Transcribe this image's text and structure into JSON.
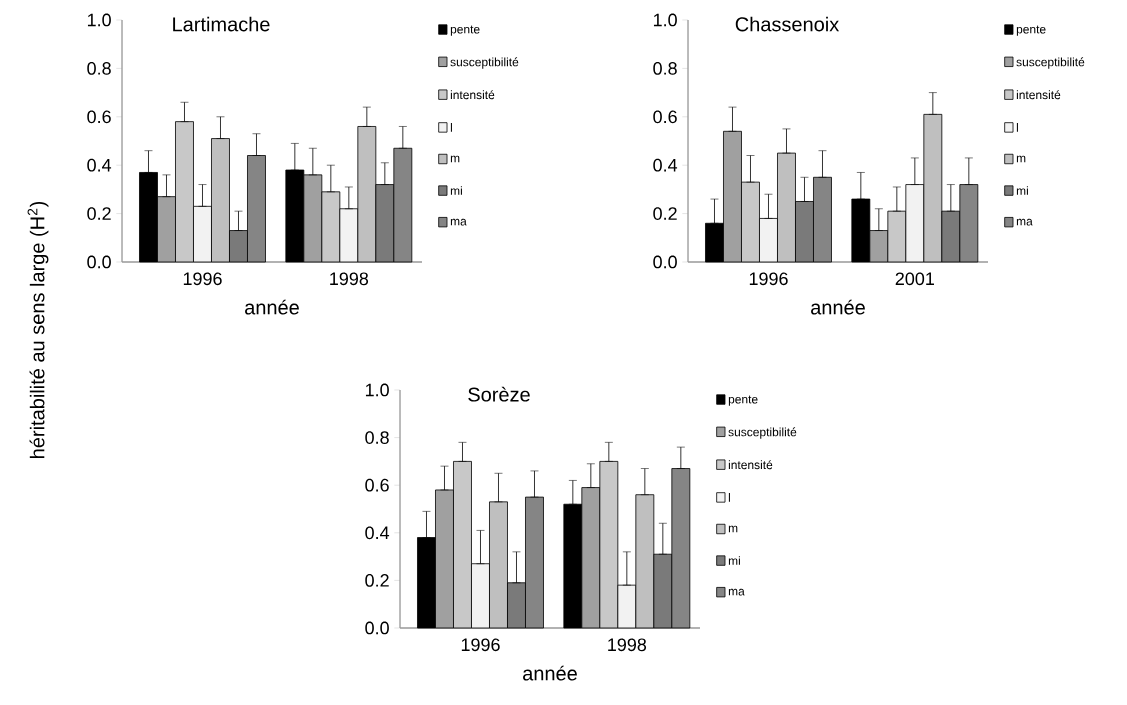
{
  "chart_data": [
    {
      "type": "bar",
      "title": "Lartimache",
      "xlabel": "année",
      "ylabel": "héritabilité au sens large (H$^{2}$)",
      "categories": [
        "1996",
        "1998"
      ],
      "ylim": [
        0,
        1.0
      ],
      "yticks": [
        {
          "value": 0,
          "label": "0.0"
        },
        {
          "value": 0.2,
          "label": "0.2"
        },
        {
          "value": 0.4,
          "label": "0.4"
        },
        {
          "value": 0.6,
          "label": "0.6"
        },
        {
          "value": 0.8,
          "label": "0.8"
        },
        {
          "value": 1.0,
          "label": "1.0"
        }
      ],
      "legend": "right",
      "grid": false,
      "series": [
        {
          "name": "pente",
          "color": "#000000",
          "values": [
            0.37,
            0.38
          ],
          "errors": [
            [
              0.37,
              0.46
            ],
            [
              0.38,
              0.49
            ]
          ]
        },
        {
          "name": "susceptibilité",
          "color": "#a0a0a0",
          "values": [
            0.27,
            0.36
          ],
          "errors": [
            [
              0.27,
              0.36
            ],
            [
              0.36,
              0.47
            ]
          ]
        },
        {
          "name": "intensité",
          "color": "#c8c8c8",
          "values": [
            0.58,
            0.29
          ],
          "errors": [
            [
              0.58,
              0.66
            ],
            [
              0.29,
              0.4
            ]
          ]
        },
        {
          "name": "l",
          "color": "#f2f2f2",
          "values": [
            0.23,
            0.22
          ],
          "errors": [
            [
              0.23,
              0.32
            ],
            [
              0.22,
              0.31
            ]
          ]
        },
        {
          "name": "m",
          "color": "#bfbfbf",
          "values": [
            0.51,
            0.56
          ],
          "errors": [
            [
              0.51,
              0.6
            ],
            [
              0.56,
              0.64
            ]
          ]
        },
        {
          "name": "mi",
          "color": "#7a7a7a",
          "values": [
            0.13,
            0.32
          ],
          "errors": [
            [
              0.13,
              0.21
            ],
            [
              0.32,
              0.41
            ]
          ]
        },
        {
          "name": "ma",
          "color": "#858585",
          "values": [
            0.44,
            0.47
          ],
          "errors": [
            [
              0.44,
              0.53
            ],
            [
              0.47,
              0.56
            ]
          ]
        }
      ]
    },
    {
      "type": "bar",
      "title": "Chassenoix",
      "xlabel": "année",
      "categories": [
        "1996",
        "2001"
      ],
      "ylim": [
        0,
        1.0
      ],
      "yticks": [
        {
          "value": 0,
          "label": "0.0"
        },
        {
          "value": 0.2,
          "label": "0.2"
        },
        {
          "value": 0.4,
          "label": "0.4"
        },
        {
          "value": 0.6,
          "label": "0.6"
        },
        {
          "value": 0.8,
          "label": "0.8"
        },
        {
          "value": 1.0,
          "label": "1.0"
        }
      ],
      "legend": "right",
      "grid": false,
      "series": [
        {
          "name": "pente",
          "color": "#000000",
          "values": [
            0.16,
            0.26
          ],
          "errors": [
            [
              0.16,
              0.26
            ],
            [
              0.26,
              0.37
            ]
          ]
        },
        {
          "name": "susceptibilité",
          "color": "#a0a0a0",
          "values": [
            0.54,
            0.13
          ],
          "errors": [
            [
              0.54,
              0.64
            ],
            [
              0.13,
              0.22
            ]
          ]
        },
        {
          "name": "intensité",
          "color": "#c8c8c8",
          "values": [
            0.33,
            0.21
          ],
          "errors": [
            [
              0.33,
              0.44
            ],
            [
              0.21,
              0.31
            ]
          ]
        },
        {
          "name": "l",
          "color": "#f2f2f2",
          "values": [
            0.18,
            0.32
          ],
          "errors": [
            [
              0.18,
              0.28
            ],
            [
              0.32,
              0.43
            ]
          ]
        },
        {
          "name": "m",
          "color": "#bfbfbf",
          "values": [
            0.45,
            0.61
          ],
          "errors": [
            [
              0.45,
              0.55
            ],
            [
              0.61,
              0.7
            ]
          ]
        },
        {
          "name": "mi",
          "color": "#7a7a7a",
          "values": [
            0.25,
            0.21
          ],
          "errors": [
            [
              0.25,
              0.35
            ],
            [
              0.21,
              0.32
            ]
          ]
        },
        {
          "name": "ma",
          "color": "#858585",
          "values": [
            0.35,
            0.32
          ],
          "errors": [
            [
              0.35,
              0.46
            ],
            [
              0.32,
              0.43
            ]
          ]
        }
      ]
    },
    {
      "type": "bar",
      "title": "Sorèze",
      "xlabel": "année",
      "categories": [
        "1996",
        "1998"
      ],
      "ylim": [
        0,
        1.0
      ],
      "yticks": [
        {
          "value": 0,
          "label": "0.0"
        },
        {
          "value": 0.2,
          "label": "0.2"
        },
        {
          "value": 0.4,
          "label": "0.4"
        },
        {
          "value": 0.6,
          "label": "0.6"
        },
        {
          "value": 0.8,
          "label": "0.8"
        },
        {
          "value": 1.0,
          "label": "1.0"
        }
      ],
      "legend": "right",
      "grid": false,
      "series": [
        {
          "name": "pente",
          "color": "#000000",
          "values": [
            0.38,
            0.52
          ],
          "errors": [
            [
              0.38,
              0.49
            ],
            [
              0.52,
              0.62
            ]
          ]
        },
        {
          "name": "susceptibilité",
          "color": "#a0a0a0",
          "values": [
            0.58,
            0.59
          ],
          "errors": [
            [
              0.58,
              0.68
            ],
            [
              0.59,
              0.69
            ]
          ]
        },
        {
          "name": "intensité",
          "color": "#c8c8c8",
          "values": [
            0.7,
            0.7
          ],
          "errors": [
            [
              0.7,
              0.78
            ],
            [
              0.7,
              0.78
            ]
          ]
        },
        {
          "name": "l",
          "color": "#f2f2f2",
          "values": [
            0.27,
            0.18
          ],
          "errors": [
            [
              0.27,
              0.41
            ],
            [
              0.18,
              0.32
            ]
          ]
        },
        {
          "name": "m",
          "color": "#bfbfbf",
          "values": [
            0.53,
            0.56
          ],
          "errors": [
            [
              0.53,
              0.65
            ],
            [
              0.56,
              0.67
            ]
          ]
        },
        {
          "name": "mi",
          "color": "#7a7a7a",
          "values": [
            0.19,
            0.31
          ],
          "errors": [
            [
              0.19,
              0.32
            ],
            [
              0.31,
              0.44
            ]
          ]
        },
        {
          "name": "ma",
          "color": "#858585",
          "values": [
            0.55,
            0.67
          ],
          "errors": [
            [
              0.55,
              0.66
            ],
            [
              0.67,
              0.76
            ]
          ]
        }
      ]
    }
  ]
}
